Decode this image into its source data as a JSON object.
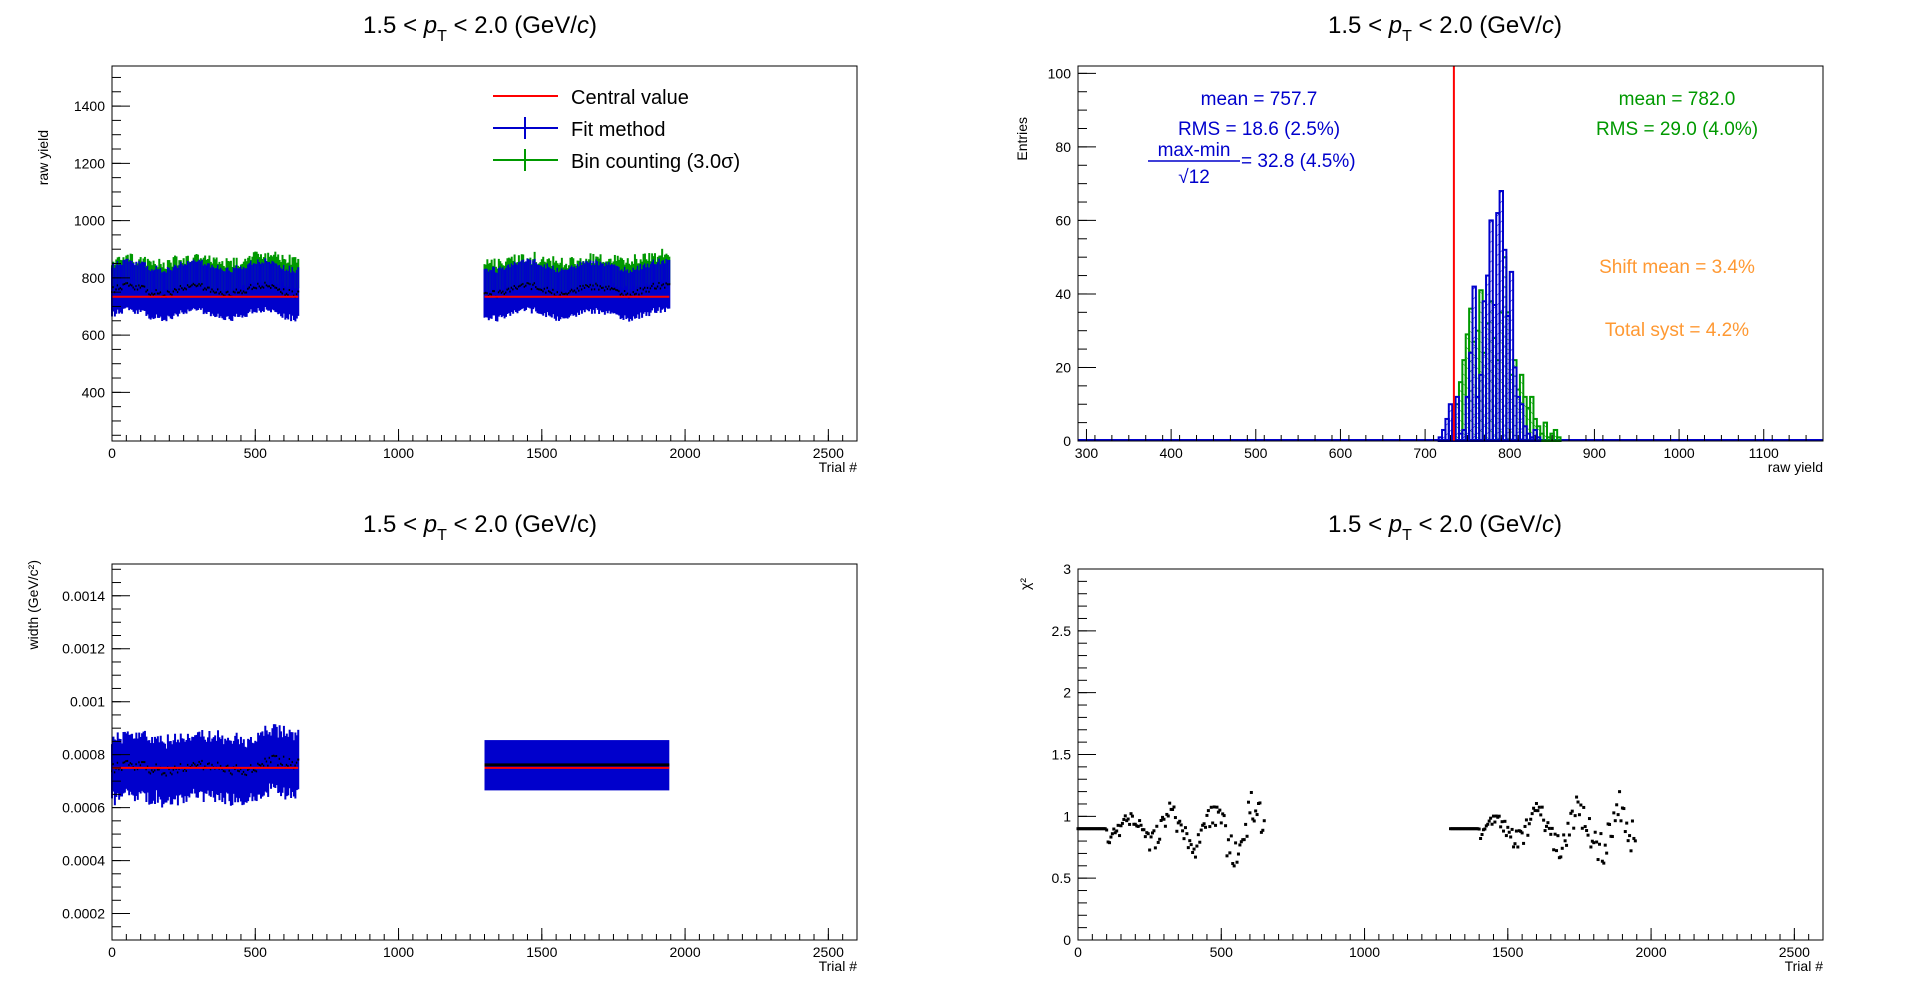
{
  "colors": {
    "central": "#ff0000",
    "fit": "#0000cc",
    "bincount": "#009900",
    "syst": "#ff9933",
    "points": "#000000"
  },
  "panels": {
    "tl": {
      "title_prefix": "1.5 < ",
      "title_var": "p",
      "title_sub": "T",
      "title_suffix": " < 2.0 (GeV/",
      "title_c": "c",
      "title_close": ")",
      "xlabel": "Trial #",
      "ylabel": "raw yield"
    },
    "tr": {
      "title_prefix": "1.5 < ",
      "title_var": "p",
      "title_sub": "T",
      "title_suffix": " < 2.0 (GeV/",
      "title_c": "c",
      "title_close": ")",
      "xlabel": "raw yield",
      "ylabel": "Entries"
    },
    "bl": {
      "title_prefix": "1.5 < ",
      "title_var": "p",
      "title_sub": "T",
      "title_suffix": " < 2.0 (GeV/c)",
      "title_c": "",
      "title_close": "",
      "xlabel": "Trial #",
      "ylabel": "width (GeV/c²)"
    },
    "br": {
      "title_prefix": "1.5 < ",
      "title_var": "p",
      "title_sub": "T",
      "title_suffix": " < 2.0 (GeV/",
      "title_c": "c",
      "title_close": ")",
      "xlabel": "Trial #",
      "ylabel": "χ²"
    }
  },
  "legend": {
    "central": "Central value",
    "fit": "Fit method",
    "bincount": "Bin counting (3.0σ)"
  },
  "stats": {
    "fit_mean": "mean = 757.7",
    "fit_rms": "RMS = 18.6 (2.5%)",
    "fit_maxmin_num": "max-min",
    "fit_maxmin_den": "√12",
    "fit_maxmin_val": " = 32.8 (4.5%)",
    "bc_mean": "mean = 782.0",
    "bc_rms": "RMS = 29.0 (4.0%)",
    "shift": "Shift mean = 3.4%",
    "total": "Total syst = 4.2%"
  },
  "chart_data": [
    {
      "type": "scatter",
      "title": "1.5 < pT < 2.0 (GeV/c)",
      "xlabel": "Trial #",
      "ylabel": "raw yield",
      "xlim": [
        0,
        2600
      ],
      "ylim": [
        230,
        1540
      ],
      "x_ticks": [
        0,
        500,
        1000,
        1500,
        2000,
        2500
      ],
      "y_ticks": [
        400,
        600,
        800,
        1000,
        1200,
        1400
      ],
      "central_value": 734,
      "trial_ranges": [
        [
          0,
          650
        ],
        [
          1300,
          1945
        ]
      ],
      "series": [
        {
          "name": "Fit method",
          "mean_y": 757.7,
          "error": 85
        },
        {
          "name": "Bin counting (3.0σ)",
          "mean_y": 782.0,
          "error": 60
        }
      ],
      "legend_position": "top-right"
    },
    {
      "type": "bar",
      "title": "1.5 < pT < 2.0 (GeV/c)",
      "xlabel": "raw yield",
      "ylabel": "Entries",
      "xlim": [
        290,
        1170
      ],
      "ylim": [
        0,
        102
      ],
      "x_ticks": [
        300,
        400,
        500,
        600,
        700,
        800,
        900,
        1000,
        1100
      ],
      "y_ticks": [
        0,
        20,
        40,
        60,
        80,
        100
      ],
      "central_value": 734,
      "bin_width": 4,
      "series": [
        {
          "name": "Fit method",
          "bin_start": 716,
          "counts": [
            1,
            3,
            6,
            10,
            6,
            12,
            2,
            3,
            12,
            24,
            42,
            12,
            18,
            38,
            45,
            60,
            37,
            62,
            68,
            52,
            34,
            46,
            20,
            12,
            10,
            4,
            2,
            1,
            3,
            1
          ]
        },
        {
          "name": "Bin counting (3.0σ)",
          "bin_start": 732,
          "counts": [
            3,
            10,
            16,
            22,
            29,
            36,
            27,
            30,
            41,
            24,
            32,
            38,
            28,
            22,
            35,
            50,
            35,
            18,
            22,
            14,
            18,
            12,
            9,
            12,
            6,
            4,
            2,
            5,
            1,
            2,
            3,
            1
          ]
        }
      ]
    },
    {
      "type": "scatter",
      "title": "1.5 < pT < 2.0 (GeV/c)",
      "xlabel": "Trial #",
      "ylabel": "width (GeV/c²)",
      "xlim": [
        0,
        2600
      ],
      "ylim": [
        0.0001,
        0.00152
      ],
      "x_ticks": [
        0,
        500,
        1000,
        1500,
        2000,
        2500
      ],
      "y_ticks": [
        0.0002,
        0.0004,
        0.0006,
        0.0008,
        0.001,
        0.0012,
        0.0014
      ],
      "central_value": 0.00075,
      "trial_ranges": [
        [
          0,
          650
        ],
        [
          1300,
          1945
        ]
      ],
      "series": [
        {
          "name": "Fit method",
          "mean_y": 0.00075,
          "error": 9.7e-05
        }
      ]
    },
    {
      "type": "scatter",
      "title": "1.5 < pT < 2.0 (GeV/c)",
      "xlabel": "Trial #",
      "ylabel": "χ²",
      "xlim": [
        0,
        2600
      ],
      "ylim": [
        0,
        3
      ],
      "x_ticks": [
        0,
        500,
        1000,
        1500,
        2000,
        2500
      ],
      "y_ticks": [
        0,
        0.5,
        1,
        1.5,
        2,
        2.5,
        3
      ],
      "trial_ranges": [
        [
          0,
          650
        ],
        [
          1300,
          1945
        ]
      ],
      "series": [
        {
          "name": "χ²",
          "baseline": 0.9,
          "min": 0.52,
          "max": 1.33
        }
      ]
    }
  ]
}
